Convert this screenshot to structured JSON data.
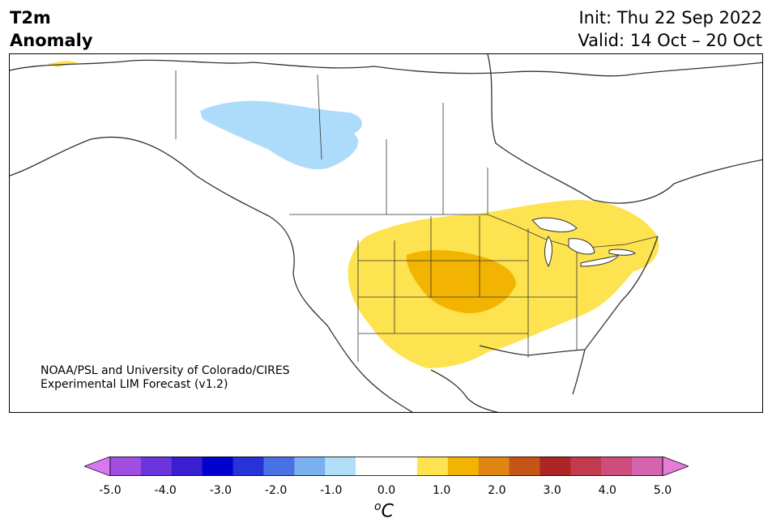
{
  "title": {
    "left_line1": "T2m",
    "left_line2": "Anomaly",
    "right_line1": "Init: Thu 22 Sep 2022",
    "right_line2": "Valid: 14 Oct – 20 Oct"
  },
  "credit": {
    "line1": "NOAA/PSL and University of Colorado/CIRES",
    "line2": "Experimental LIM Forecast (v1.2)"
  },
  "colorbar": {
    "unit_sup": "o",
    "unit": "C",
    "ticks": [
      "-5.0",
      "-4.0",
      "-3.0",
      "-2.0",
      "-1.0",
      "0.0",
      "1.0",
      "2.0",
      "3.0",
      "4.0",
      "5.0"
    ],
    "colors": [
      "#d977f0",
      "#a04fe0",
      "#6a35dc",
      "#3a1fd0",
      "#0000cf",
      "#2633d6",
      "#4a70e6",
      "#7aaff0",
      "#b2def9",
      "#ffffff",
      "#ffffff",
      "#fde34f",
      "#f2b400",
      "#de8512",
      "#c55417",
      "#ae2525",
      "#c23a4e",
      "#cd4e7c",
      "#d563ad",
      "#e77bd9"
    ]
  },
  "legend_colors": {
    "light_blue": "#addcfb",
    "yellow": "#fde34f",
    "orange": "#f2b400",
    "land_outline": "#333333"
  }
}
